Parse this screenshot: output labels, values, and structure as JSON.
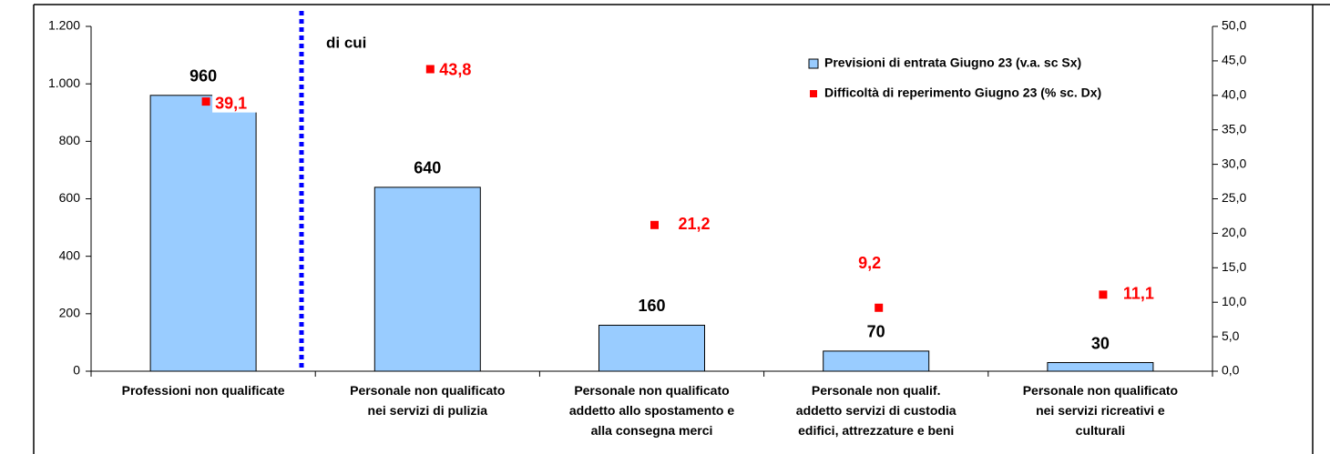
{
  "chart_data": {
    "type": "bar_scatter",
    "categories": [
      "Professioni non qualificate",
      "Personale non qualificato\nnei servizi di pulizia",
      "Personale non qualificato\naddetto allo spostamento e\nalla consegna merci",
      "Personale non qualif.\naddetto servizi di custodia\nedifici, attrezzature e beni",
      "Personale non qualificato\nnei servizi ricreativi e\nculturali"
    ],
    "series": [
      {
        "name": "Previsioni di entrata Giugno 23 (v.a. sc Sx)",
        "type": "bar",
        "color": "#99ccff",
        "values": [
          960,
          640,
          160,
          70,
          30
        ]
      },
      {
        "name": "Difficoltà di reperimento Giugno 23 (% sc. Dx)",
        "type": "scatter",
        "axis": "y2",
        "color": "#ff0000",
        "values": [
          39.1,
          43.8,
          21.2,
          9.2,
          11.1
        ],
        "value_labels": [
          "39,1",
          "43,8",
          "21,2",
          "9,2",
          "11,1"
        ]
      }
    ],
    "annotation": "di cui",
    "ylim": [
      0,
      1200
    ],
    "yticks": [
      0,
      200,
      400,
      600,
      800,
      {
        "value": 1000,
        "label": "1.000"
      },
      {
        "value": 1200,
        "label": "1.200"
      }
    ],
    "y2lim": [
      0,
      50
    ],
    "y2ticks": [
      {
        "value": 0,
        "label": "0,0"
      },
      {
        "value": 5,
        "label": "5,0"
      },
      {
        "value": 10,
        "label": "10,0"
      },
      {
        "value": 15,
        "label": "15,0"
      },
      {
        "value": 20,
        "label": "20,0"
      },
      {
        "value": 25,
        "label": "25,0"
      },
      {
        "value": 30,
        "label": "30,0"
      },
      {
        "value": 35,
        "label": "35,0"
      },
      {
        "value": 40,
        "label": "40,0"
      },
      {
        "value": 45,
        "label": "45,0"
      },
      {
        "value": 50,
        "label": "50,0"
      }
    ],
    "legend": "top-right"
  }
}
